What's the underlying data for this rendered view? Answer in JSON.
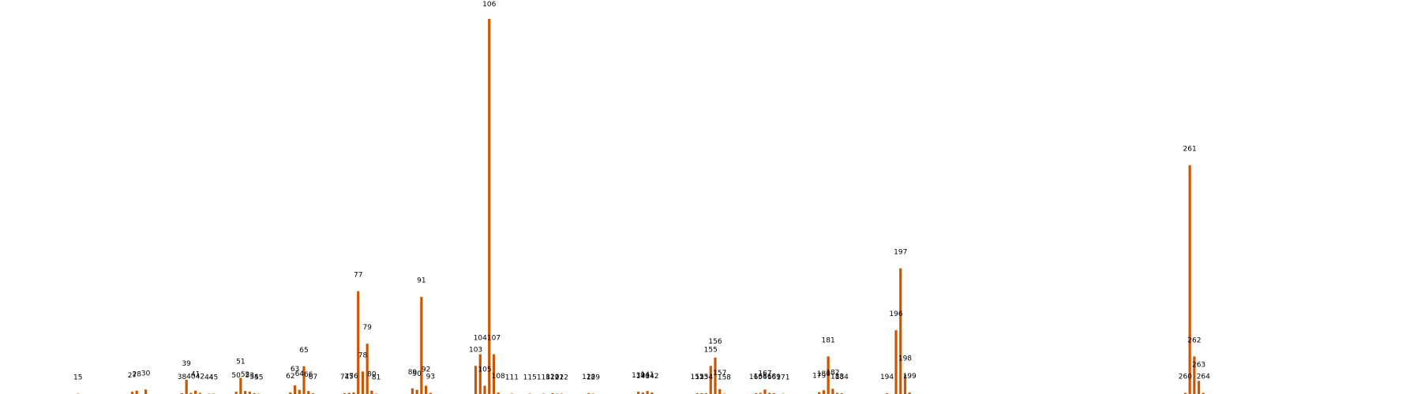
{
  "chart_data": {
    "type": "bar",
    "color": "#cc5500",
    "title": "",
    "xlabel": "",
    "ylabel": "",
    "axes_visible": false,
    "grid": false,
    "xlim": [
      0,
      270
    ],
    "ylim": [
      0,
      100
    ],
    "x": [
      15,
      27,
      28,
      30,
      38,
      39,
      40,
      41,
      42,
      44,
      45,
      50,
      51,
      52,
      53,
      54,
      55,
      62,
      63,
      64,
      65,
      66,
      67,
      74,
      75,
      76,
      77,
      78,
      79,
      80,
      81,
      89,
      90,
      91,
      92,
      93,
      103,
      104,
      105,
      106,
      107,
      108,
      111,
      115,
      118,
      120,
      121,
      122,
      128,
      129,
      139,
      140,
      141,
      142,
      152,
      153,
      154,
      155,
      156,
      157,
      158,
      165,
      166,
      167,
      168,
      169,
      171,
      179,
      180,
      181,
      182,
      183,
      184,
      194,
      196,
      197,
      198,
      199,
      260,
      261,
      262,
      263,
      264
    ],
    "labels": [
      "15",
      "27",
      "28",
      "30",
      "38",
      "39",
      "40",
      "41",
      "42",
      "44",
      "45",
      "50",
      "51",
      "52",
      "53",
      "54",
      "55",
      "62",
      "63",
      "64",
      "65",
      "66",
      "67",
      "74",
      "75",
      "76",
      "77",
      "78",
      "79",
      "80",
      "81",
      "89",
      "90",
      "91",
      "92",
      "93",
      "103",
      "104",
      "105",
      "106",
      "107",
      "108",
      "111",
      "115",
      "118",
      "120",
      "121",
      "122",
      "128",
      "129",
      "139",
      "140",
      "141",
      "142",
      "152",
      "153",
      "154",
      "155",
      "156",
      "157",
      "158",
      "165",
      "166",
      "167",
      "168",
      "169",
      "171",
      "179",
      "180",
      "181",
      "182",
      "183",
      "184",
      "194",
      "196",
      "197",
      "198",
      "199",
      "260",
      "261",
      "262",
      "263",
      "264"
    ],
    "values": [
      0.1,
      0.6,
      0.9,
      1.2,
      0.2,
      3.8,
      0.3,
      0.9,
      0.3,
      0.1,
      0.1,
      0.6,
      4.3,
      0.8,
      0.6,
      0.2,
      0.1,
      0.4,
      2.3,
      1.1,
      7.4,
      0.8,
      0.2,
      0.2,
      0.3,
      0.4,
      27.4,
      6.0,
      13.4,
      0.9,
      0.1,
      1.5,
      1.1,
      25.9,
      2.2,
      0.3,
      7.5,
      10.6,
      2.2,
      100,
      10.6,
      0.4,
      0.1,
      0.1,
      0.1,
      0.2,
      0.1,
      0.1,
      0.2,
      0.1,
      0.6,
      0.4,
      0.8,
      0.4,
      0.2,
      0.2,
      0.2,
      7.5,
      9.7,
      1.3,
      0.1,
      0.2,
      0.3,
      1.2,
      0.3,
      0.2,
      0.1,
      0.5,
      1.0,
      10.0,
      1.4,
      0.3,
      0.2,
      0.2,
      17.0,
      33.5,
      5.2,
      0.4,
      0.3,
      61.0,
      10.0,
      3.5,
      0.3
    ]
  }
}
